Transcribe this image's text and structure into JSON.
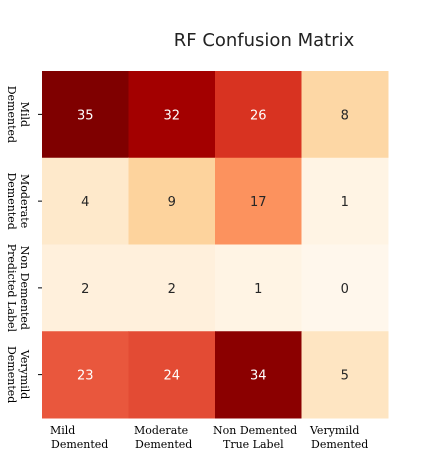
{
  "chart_data": {
    "type": "heatmap",
    "title": "RF Confusion Matrix",
    "row_labels": [
      [
        "Mild",
        "Demented"
      ],
      [
        "Moderate",
        "Demented"
      ],
      [
        "Non Demented",
        "Predicted Label"
      ],
      [
        "Verymild",
        "Demented"
      ]
    ],
    "col_labels": [
      [
        "Mild",
        "Demented"
      ],
      [
        "Moderate",
        "Demented"
      ],
      [
        "Non Demented",
        "True Label"
      ],
      [
        "Verymild",
        "Demented"
      ]
    ],
    "values": [
      [
        35,
        32,
        26,
        8
      ],
      [
        4,
        9,
        17,
        1
      ],
      [
        2,
        2,
        1,
        0
      ],
      [
        23,
        24,
        34,
        5
      ]
    ],
    "colormap": "OrRd",
    "vmin": 0,
    "vmax": 35,
    "colorbar": false
  }
}
